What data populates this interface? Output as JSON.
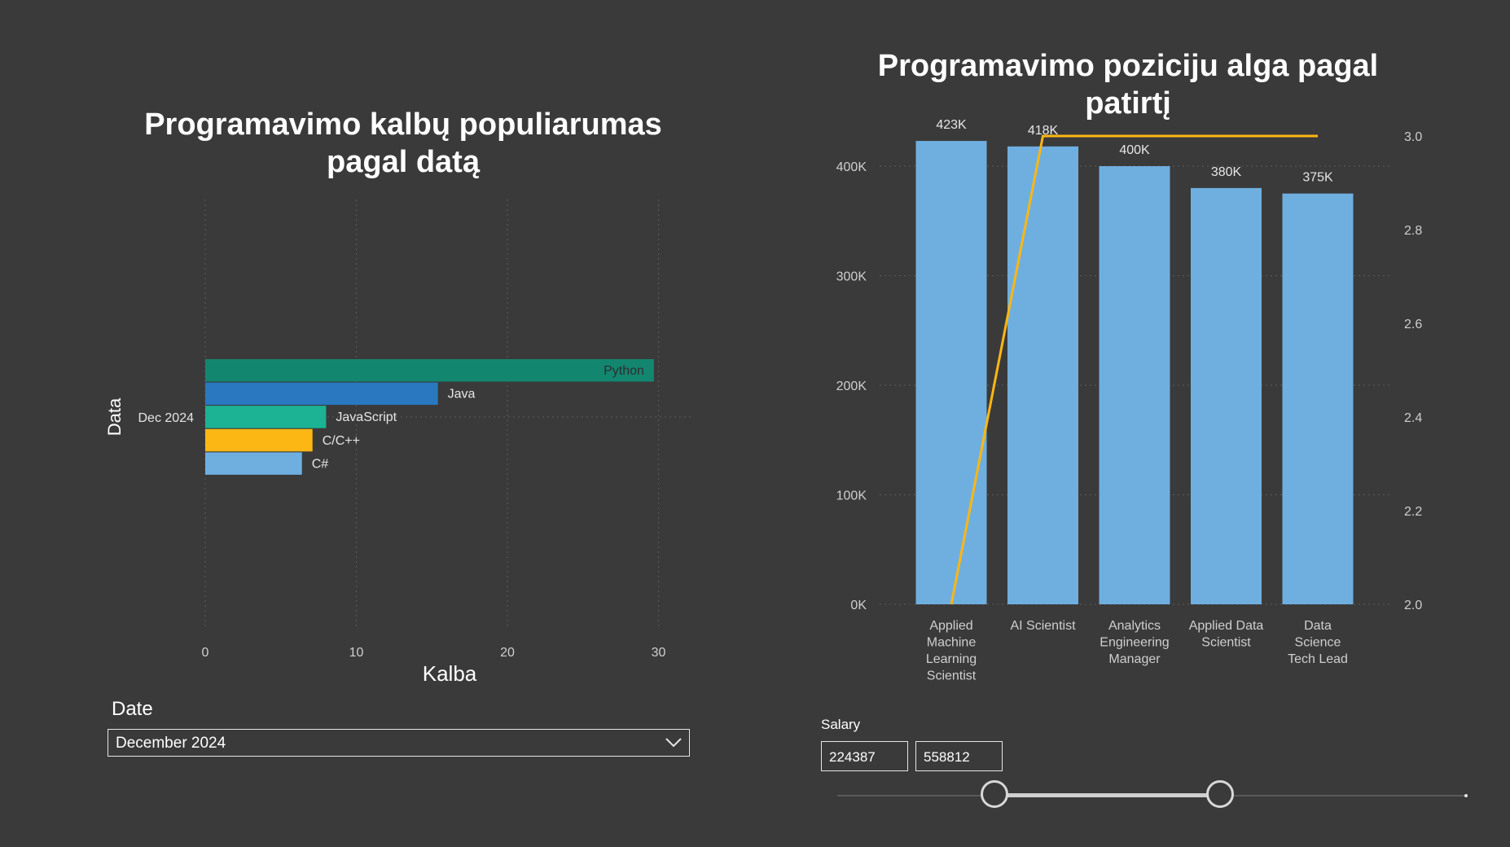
{
  "left_chart": {
    "title": "Programavimo kalbų populiarumas pagal datą"
  },
  "right_chart": {
    "title": "Programavimo poziciju alga pagal patirtį"
  },
  "date_slicer": {
    "label": "Date",
    "value": "December 2024"
  },
  "salary_slicer": {
    "label": "Salary",
    "min": "224387",
    "max": "558812",
    "min_value": 224387,
    "max_value": 558812,
    "range_min_fraction": 0,
    "range_max_fraction": 1,
    "low_fraction": 0.25,
    "high_fraction": 0.61
  },
  "chart_data": [
    {
      "type": "bar",
      "orientation": "horizontal",
      "title": "Programavimo kalbų populiarumas pagal datą",
      "xlabel": "Kalba",
      "ylabel": "Data",
      "category": "Dec 2024",
      "xlim": [
        0,
        33
      ],
      "xticks": [
        "0",
        "10",
        "20",
        "30"
      ],
      "series": [
        {
          "name": "Python",
          "value": 29.7,
          "color": "#138670"
        },
        {
          "name": "Java",
          "value": 15.4,
          "color": "#2978c0"
        },
        {
          "name": "JavaScript",
          "value": 8.0,
          "color": "#1bb393"
        },
        {
          "name": "C/C++",
          "value": 7.1,
          "color": "#fcb714"
        },
        {
          "name": "C#",
          "value": 6.4,
          "color": "#6fafe0"
        }
      ],
      "grid": true
    },
    {
      "type": "bar",
      "subtype": "bar+line",
      "title": "Programavimo poziciju alga pagal patirtį",
      "categories": [
        "Applied Machine Learning Scientist",
        "AI Scientist",
        "Analytics Engineering Manager",
        "Applied Data Scientist",
        "Data Science Tech Lead"
      ],
      "category_lines": [
        [
          "Applied",
          "Machine",
          "Learning",
          "Scientist"
        ],
        [
          "AI Scientist"
        ],
        [
          "Analytics",
          "Engineering",
          "Manager"
        ],
        [
          "Applied Data",
          "Scientist"
        ],
        [
          "Data",
          "Science",
          "Tech Lead"
        ]
      ],
      "bar_values": [
        423000,
        418000,
        400000,
        380000,
        375000
      ],
      "bar_labels": [
        "423K",
        "418K",
        "400K",
        "380K",
        "375K"
      ],
      "bar_color": "#6fafe0",
      "line_values": [
        2.0,
        3.0,
        3.0,
        3.0,
        3.0
      ],
      "line_color": "#fcb714",
      "ylim": [
        0,
        450000
      ],
      "yticks": [
        "0K",
        "100K",
        "200K",
        "300K",
        "400K"
      ],
      "y2lim": [
        2.0,
        3.0
      ],
      "y2ticks": [
        "2.0",
        "2.2",
        "2.4",
        "2.6",
        "2.8",
        "3.0"
      ],
      "grid": true
    }
  ]
}
